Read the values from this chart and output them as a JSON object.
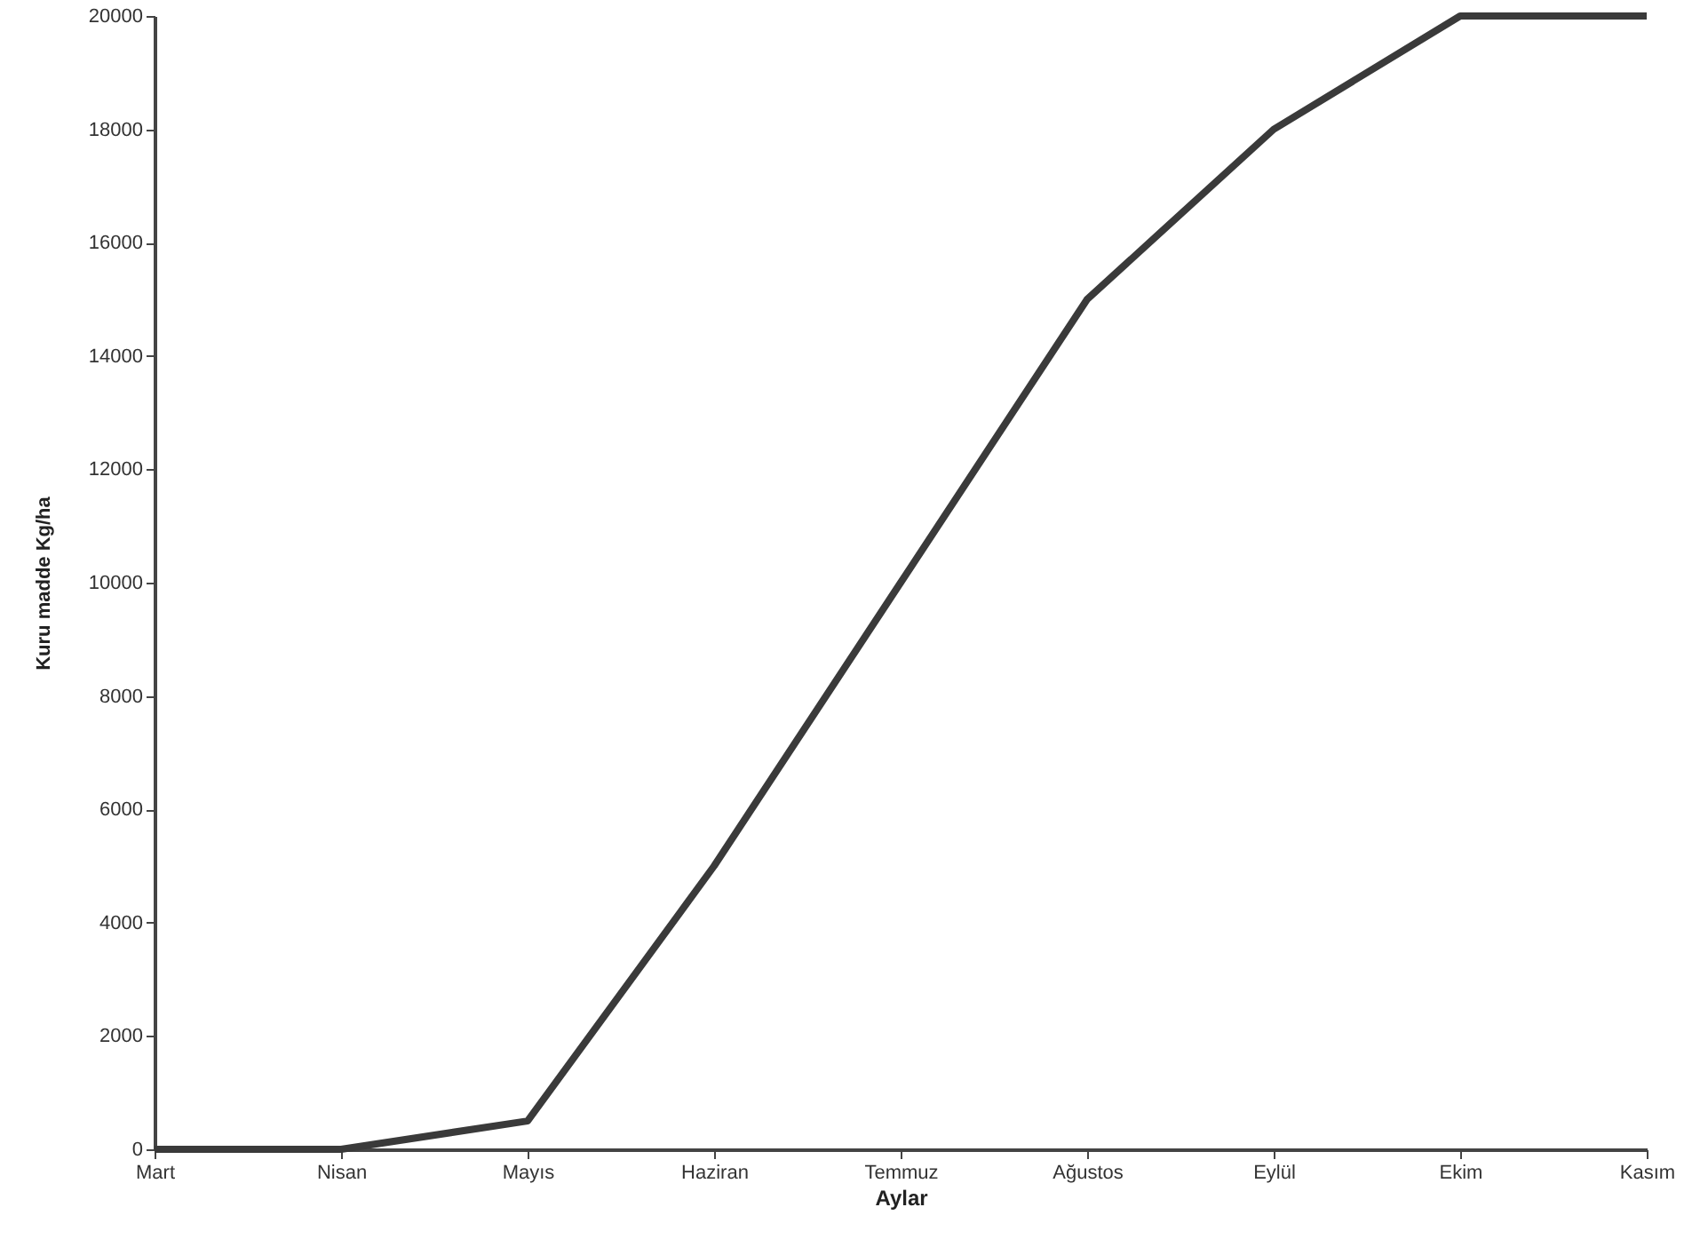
{
  "chart_data": {
    "type": "line",
    "xlabel": "Aylar",
    "ylabel": "Kuru madde Kg/ha",
    "categories": [
      "Mart",
      "Nisan",
      "Mayıs",
      "Haziran",
      "Temmuz",
      "Ağustos",
      "Eylül",
      "Ekim",
      "Kasım"
    ],
    "series": [
      {
        "color": "#3a3a3a",
        "values": [
          0,
          0,
          500,
          5000,
          10000,
          15000,
          18000,
          20000,
          20000
        ]
      }
    ],
    "ylim": [
      0,
      20000
    ],
    "yticks": [
      0,
      2000,
      4000,
      6000,
      8000,
      10000,
      12000,
      14000,
      16000,
      18000,
      20000
    ],
    "grid": false,
    "marker": "none",
    "line_style": "solid"
  }
}
